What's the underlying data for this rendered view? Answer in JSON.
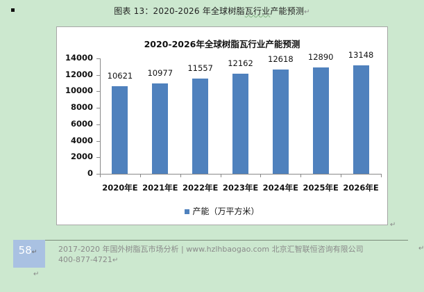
{
  "caption": {
    "prefix": "图表 13：2020-2026 年全球树脂",
    "wavy": "瓦行业",
    "suffix": "产能预测",
    "return_mark": "↵"
  },
  "chart_data": {
    "type": "bar",
    "title": "2020-2026年全球树脂瓦行业产能预测",
    "categories": [
      "2020年E",
      "2021年E",
      "2022年E",
      "2023年E",
      "2024年E",
      "2025年E",
      "2026年E"
    ],
    "series": [
      {
        "name": "产能（万平方米）",
        "values": [
          10621,
          10977,
          11557,
          12162,
          12618,
          12890,
          13148
        ],
        "color": "#4f81bd"
      }
    ],
    "xlabel": "",
    "ylabel": "",
    "ylim": [
      0,
      14000
    ],
    "yticks": [
      0,
      2000,
      4000,
      6000,
      8000,
      10000,
      12000,
      14000
    ],
    "grid": false,
    "legend_position": "bottom",
    "data_labels": true
  },
  "footer": {
    "page_number": "58",
    "line1": "2017-2020 年国外树脂瓦市场分析 | www.hzlhbaogao.com 北京汇智联恒咨询有限公司",
    "line2": "400-877-4721",
    "return_mark": "↵"
  }
}
